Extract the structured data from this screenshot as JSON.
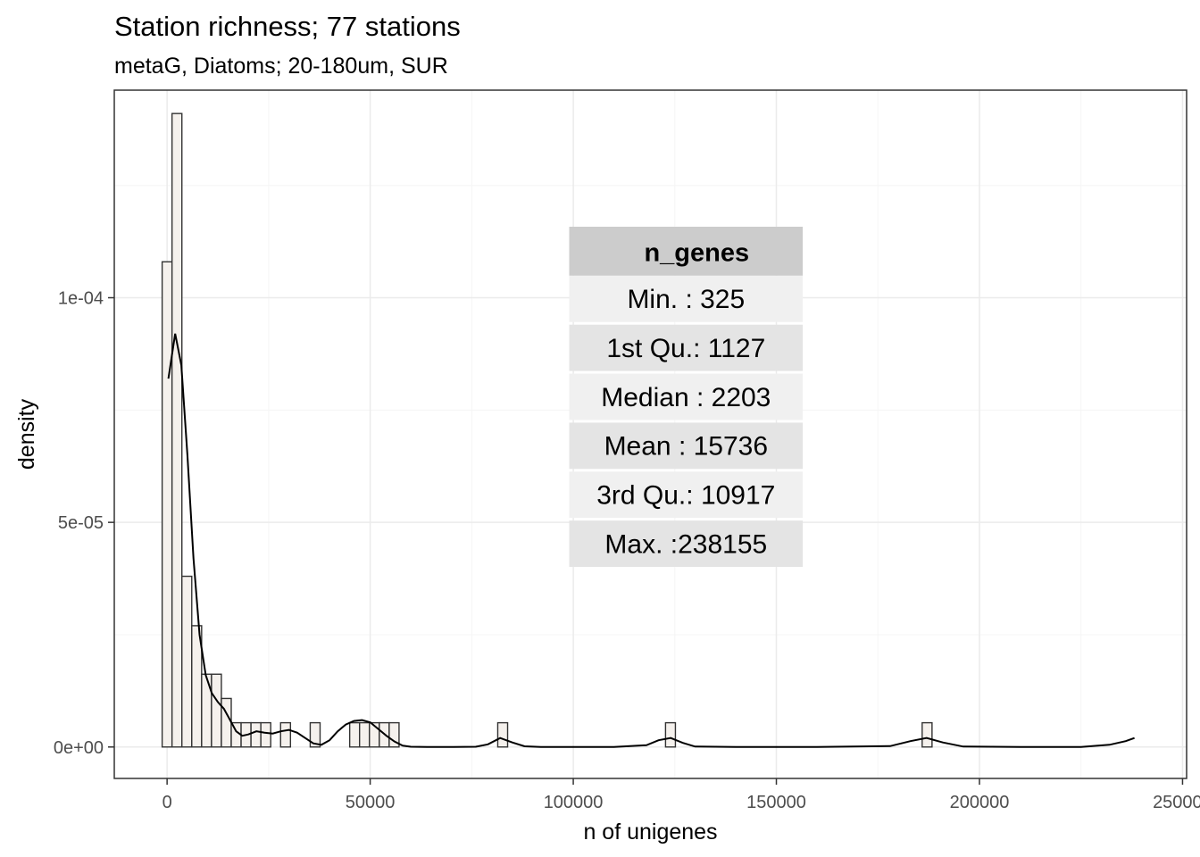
{
  "chart_data": {
    "type": "histogram",
    "title": "Station richness; 77 stations",
    "subtitle": "metaG, Diatoms; 20-180um, SUR",
    "xlabel": "n of unigenes",
    "ylabel": "density",
    "xlim": [
      -13000,
      251000
    ],
    "ylim": [
      -7e-06,
      0.0001462
    ],
    "x_ticks": [
      {
        "value": 0,
        "label": "0"
      },
      {
        "value": 50000,
        "label": "50000"
      },
      {
        "value": 100000,
        "label": "100000"
      },
      {
        "value": 150000,
        "label": "150000"
      },
      {
        "value": 200000,
        "label": "200000"
      },
      {
        "value": 250000,
        "label": "250000"
      }
    ],
    "y_ticks": [
      {
        "value": 0,
        "label": "0e+00"
      },
      {
        "value": 5e-05,
        "label": "5e-05"
      },
      {
        "value": 0.0001,
        "label": "1e-04"
      }
    ],
    "bin_width": 2430,
    "bins_start": -1215,
    "bin_density": [
      0.000108,
      0.000141,
      3.8e-05,
      2.7e-05,
      1.62e-05,
      1.62e-05,
      1.08e-05,
      5.4e-06,
      5.4e-06,
      5.4e-06,
      5.4e-06,
      0,
      5.4e-06,
      0,
      0,
      5.4e-06,
      0,
      0,
      0,
      5.4e-06,
      5.4e-06,
      5.4e-06,
      5.4e-06,
      5.4e-06,
      0,
      0,
      0,
      0,
      0,
      0,
      0,
      0,
      0,
      0,
      5.4e-06,
      0,
      0,
      0,
      0,
      0,
      0,
      0,
      0,
      0,
      0,
      0,
      0,
      0,
      0,
      0,
      0,
      5.4e-06,
      0,
      0,
      0,
      0,
      0,
      0,
      0,
      0,
      0,
      0,
      0,
      0,
      0,
      0,
      0,
      0,
      0,
      0,
      0,
      0,
      0,
      0,
      0,
      0,
      0,
      5.4e-06,
      0,
      0,
      0,
      0,
      0,
      0,
      0,
      0,
      0,
      0,
      0,
      0,
      0,
      0,
      0,
      0,
      0,
      0,
      0,
      0,
      0,
      0,
      0,
      0,
      0,
      0,
      0,
      0,
      0,
      0,
      0,
      5.4e-06
    ],
    "density_curve": {
      "x": [
        325,
        2000,
        3500,
        5000,
        6500,
        8000,
        9500,
        11000,
        12500,
        14000,
        15500,
        17000,
        18500,
        20000,
        22000,
        24000,
        26000,
        28000,
        30000,
        32000,
        34000,
        36000,
        38000,
        40000,
        42000,
        44000,
        46000,
        48000,
        50000,
        52000,
        54000,
        56000,
        58000,
        60000,
        64000,
        70000,
        76000,
        79000,
        82000,
        85000,
        88000,
        92000,
        100000,
        110000,
        118000,
        121000,
        124000,
        127000,
        130000,
        140000,
        160000,
        178000,
        183000,
        187000,
        191000,
        196000,
        210000,
        225000,
        232000,
        236000,
        238155
      ],
      "y": [
        8.2e-05,
        9.2e-05,
        8.5e-05,
        6.5e-05,
        4.2e-05,
        2.5e-05,
        1.6e-05,
        1.2e-05,
        1e-05,
        8.5e-06,
        6e-06,
        3.5e-06,
        2.5e-06,
        2.8e-06,
        3.5e-06,
        3.2e-06,
        3e-06,
        3.5e-06,
        3.8e-06,
        3.2e-06,
        2e-06,
        8e-07,
        5e-07,
        1.5e-06,
        3.5e-06,
        5e-06,
        5.8e-06,
        6e-06,
        5.5e-06,
        4e-06,
        2.5e-06,
        1.2e-06,
        3e-07,
        5e-08,
        0,
        0,
        5e-08,
        6e-07,
        2e-06,
        1e-06,
        1.5e-07,
        0,
        0,
        0,
        4e-07,
        1.5e-06,
        2e-06,
        9e-07,
        1e-07,
        0,
        0,
        2e-07,
        1.3e-06,
        2e-06,
        1e-06,
        1e-07,
        0,
        0,
        5e-07,
        1.3e-06,
        2e-06
      ]
    },
    "summary_table": {
      "header": "n_genes",
      "rows": [
        "Min.   :   325",
        "1st Qu.:  1127",
        "Median :  2203",
        "Mean   : 15736",
        "3rd Qu.: 10917",
        "Max.   :238155"
      ]
    },
    "colors": {
      "bar_fill": "#f5f1ed",
      "bar_stroke": "#333333",
      "curve": "#000000",
      "grid_major": "#ebebeb",
      "grid_minor": "#f5f5f5",
      "panel_border": "#333333",
      "table_header": "#cccccc",
      "table_row_light": "#f0f0f0",
      "table_row_dark": "#e4e4e4"
    },
    "grid": true,
    "legend": "none"
  }
}
